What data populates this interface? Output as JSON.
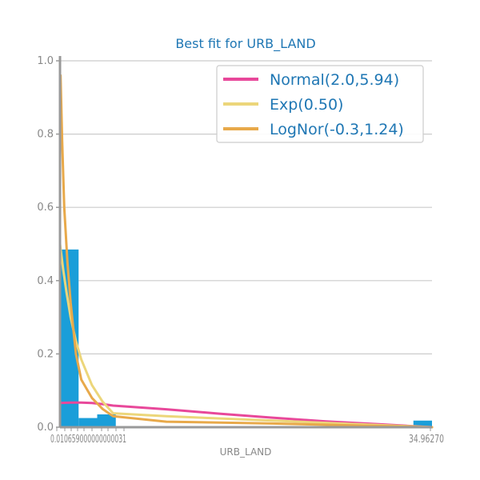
{
  "chart_data": {
    "type": "bar",
    "title": "Best fit for URB_LAND",
    "xlabel": "URB_LAND",
    "ylabel": "",
    "ylim": [
      0,
      1.0
    ],
    "xlim": [
      0,
      35
    ],
    "yticks": [
      0.0,
      0.2,
      0.4,
      0.6,
      0.8,
      1.0
    ],
    "ytick_labels": [
      "0.0",
      "0.2",
      "0.4",
      "0.6",
      "0.8",
      "1.0"
    ],
    "xtick_labels_overlapping_left": "0.010659000000000031",
    "xtick_labels_overlapping_right": "34.96270",
    "grid": "horizontal",
    "legend_position": "top-right",
    "histogram": {
      "color": "#1a9ed9",
      "bins": [
        {
          "x0": 0.0,
          "x1": 1.75,
          "value": 0.485
        },
        {
          "x0": 1.75,
          "x1": 3.5,
          "value": 0.025
        },
        {
          "x0": 3.5,
          "x1": 5.25,
          "value": 0.035
        },
        {
          "x0": 33.25,
          "x1": 35.0,
          "value": 0.018
        }
      ]
    },
    "series": [
      {
        "name": "Normal(2.0,5.94)",
        "color": "#e8489a",
        "x": [
          0.0,
          1.0,
          2.0,
          3.0,
          4.0,
          5.0,
          10.0,
          15.0,
          20.0,
          25.0,
          30.0,
          35.0
        ],
        "values": [
          0.066,
          0.067,
          0.067,
          0.066,
          0.063,
          0.059,
          0.049,
          0.037,
          0.026,
          0.016,
          0.008,
          0.0
        ]
      },
      {
        "name": "Exp(0.50)",
        "color": "#ecd67a",
        "x": [
          0.0,
          0.3,
          0.6,
          1.0,
          1.5,
          2.0,
          3.0,
          4.0,
          5.0,
          10.0,
          20.0,
          35.0
        ],
        "values": [
          0.5,
          0.43,
          0.37,
          0.3,
          0.235,
          0.185,
          0.115,
          0.07,
          0.038,
          0.03,
          0.018,
          0.0
        ]
      },
      {
        "name": "LogNor(-0.3,1.24)",
        "color": "#e8a94a",
        "x": [
          0.05,
          0.2,
          0.4,
          0.7,
          1.0,
          1.5,
          2.0,
          3.0,
          4.0,
          5.0,
          10.0,
          20.0,
          35.0
        ],
        "values": [
          0.96,
          0.78,
          0.6,
          0.45,
          0.34,
          0.2,
          0.13,
          0.08,
          0.05,
          0.03,
          0.015,
          0.01,
          0.0
        ]
      }
    ]
  }
}
